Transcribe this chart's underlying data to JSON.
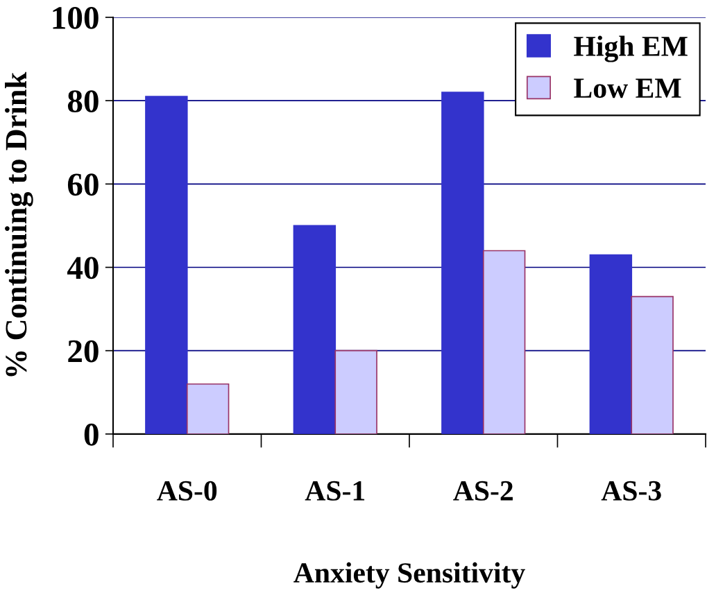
{
  "chart_data": {
    "type": "bar",
    "xlabel": "Anxiety Sensitivity",
    "ylabel": "% Continuing to Drink",
    "categories": [
      "AS-0",
      "AS-1",
      "AS-2",
      "AS-3"
    ],
    "series": [
      {
        "name": "High EM",
        "color": "#3333cc",
        "values": [
          81,
          50,
          82,
          43
        ]
      },
      {
        "name": "Low EM",
        "color": "#ccccff",
        "values": [
          12,
          20,
          44,
          33
        ]
      }
    ],
    "ylim": [
      0,
      100
    ],
    "yticks": [
      0,
      20,
      40,
      60,
      80,
      100
    ],
    "grid": "y",
    "legend": "top right"
  }
}
